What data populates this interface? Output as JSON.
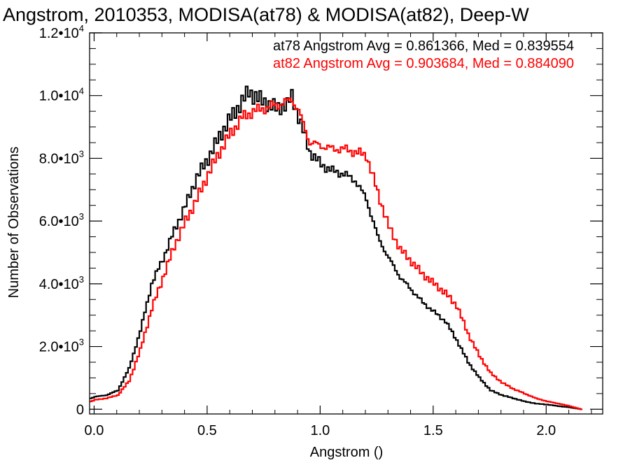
{
  "chart_data": {
    "type": "line",
    "title": "Angstrom, 2010353, MODISA(at78) & MODISA(at82), Deep-W",
    "xlabel": "Angstrom ()",
    "ylabel": "Number of Observations",
    "xlim": [
      -0.02,
      2.25
    ],
    "ylim": [
      -150,
      12000
    ],
    "grid": false,
    "legend_position": "top-right",
    "x_ticks": [
      {
        "value": 0.0,
        "label": "0.0"
      },
      {
        "value": 0.5,
        "label": "0.5"
      },
      {
        "value": 1.0,
        "label": "1.0"
      },
      {
        "value": 1.5,
        "label": "1.5"
      },
      {
        "value": 2.0,
        "label": "2.0"
      }
    ],
    "y_ticks": [
      {
        "value": 0,
        "mantissa": "0",
        "exponent": ""
      },
      {
        "value": 2000,
        "mantissa": "2.0•10",
        "exponent": "3"
      },
      {
        "value": 4000,
        "mantissa": "4.0•10",
        "exponent": "3"
      },
      {
        "value": 6000,
        "mantissa": "6.0•10",
        "exponent": "3"
      },
      {
        "value": 8000,
        "mantissa": "8.0•10",
        "exponent": "3"
      },
      {
        "value": 10000,
        "mantissa": "1.0•10",
        "exponent": "4"
      },
      {
        "value": 12000,
        "mantissa": "1.2•10",
        "exponent": "4"
      }
    ],
    "series": [
      {
        "name": "at78",
        "color": "#000000",
        "annotation": "at78 Angstrom Avg = 0.861366, Med = 0.839554",
        "x": [
          -0.02,
          0.0,
          0.05,
          0.1,
          0.15,
          0.2,
          0.25,
          0.3,
          0.35,
          0.4,
          0.45,
          0.5,
          0.55,
          0.6,
          0.65,
          0.68,
          0.7,
          0.75,
          0.8,
          0.85,
          0.87,
          0.9,
          0.95,
          1.0,
          1.05,
          1.1,
          1.15,
          1.2,
          1.25,
          1.3,
          1.35,
          1.4,
          1.45,
          1.5,
          1.55,
          1.6,
          1.65,
          1.7,
          1.75,
          1.8,
          1.85,
          1.9,
          1.95,
          2.0,
          2.05,
          2.1,
          2.15
        ],
        "y": [
          350,
          400,
          450,
          600,
          1300,
          2500,
          4000,
          4800,
          5700,
          6500,
          7400,
          8000,
          8700,
          9300,
          9800,
          10150,
          10000,
          9800,
          9600,
          9700,
          10000,
          9300,
          8200,
          7800,
          7600,
          7500,
          7300,
          6700,
          5500,
          4800,
          4200,
          3800,
          3400,
          3100,
          2800,
          2200,
          1500,
          1000,
          600,
          450,
          350,
          250,
          180,
          150,
          100,
          60,
          0
        ]
      },
      {
        "name": "at82",
        "color": "#ff0000",
        "annotation": "at82 Angstrom Avg = 0.903684, Med = 0.884090",
        "x": [
          -0.02,
          0.0,
          0.05,
          0.1,
          0.15,
          0.2,
          0.25,
          0.3,
          0.35,
          0.4,
          0.45,
          0.5,
          0.55,
          0.6,
          0.65,
          0.7,
          0.75,
          0.8,
          0.85,
          0.87,
          0.9,
          0.95,
          1.0,
          1.05,
          1.1,
          1.15,
          1.2,
          1.25,
          1.3,
          1.35,
          1.4,
          1.45,
          1.5,
          1.55,
          1.6,
          1.65,
          1.7,
          1.75,
          1.8,
          1.85,
          1.9,
          1.95,
          2.0,
          2.05,
          2.1,
          2.15
        ],
        "y": [
          250,
          300,
          350,
          450,
          900,
          1900,
          3200,
          4200,
          5200,
          6000,
          6700,
          7500,
          8200,
          8800,
          9300,
          9500,
          9600,
          9700,
          9800,
          9900,
          9500,
          8500,
          8400,
          8300,
          8300,
          8200,
          8100,
          6900,
          5800,
          5100,
          4700,
          4300,
          4000,
          3700,
          3300,
          2400,
          1700,
          1150,
          850,
          650,
          500,
          350,
          250,
          180,
          100,
          0
        ]
      }
    ]
  }
}
